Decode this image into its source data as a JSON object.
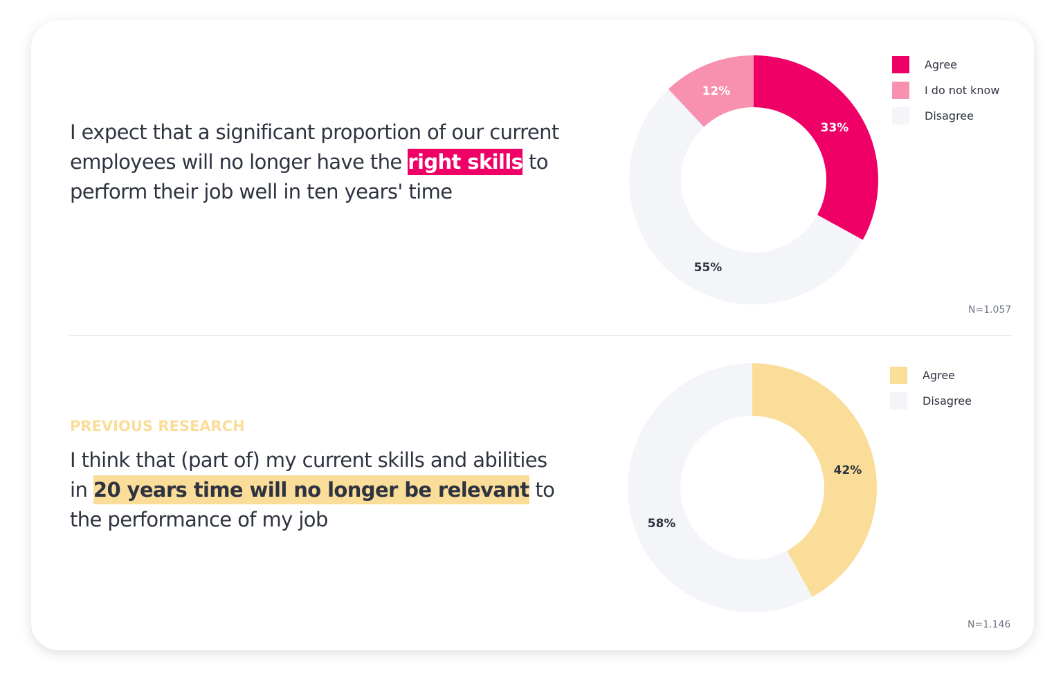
{
  "panels": [
    {
      "statement": {
        "before": "I expect that a significant proportion of our current employees will no longer have the ",
        "highlight": "right skills",
        "after": " to perform their job well in ten years' time"
      },
      "highlight_color": "#ee0066",
      "n_label": "N=1.057",
      "legend": [
        {
          "label": "Agree",
          "color": "#ee0066"
        },
        {
          "label": "I do not know",
          "color": "#f891b0"
        },
        {
          "label": "Disagree",
          "color": "#f3f5f9"
        }
      ]
    },
    {
      "kicker": "PREVIOUS RESEARCH",
      "statement": {
        "before": "I think that (part of) my current skills and abilities in ",
        "highlight": "20 years time will no longer be relevant",
        "after": " to the performance of my job"
      },
      "highlight_color": "#fbdd9a",
      "n_label": "N=1.146",
      "legend": [
        {
          "label": "Agree",
          "color": "#fbdd9a"
        },
        {
          "label": "Disagree",
          "color": "#f3f5f9"
        }
      ]
    }
  ],
  "chart_data": [
    {
      "type": "pie",
      "variant": "donut",
      "title": "I expect that a significant proportion of our current employees will no longer have the right skills to perform their job well in ten years' time",
      "categories": [
        "Agree",
        "Disagree",
        "I do not know"
      ],
      "values": [
        33,
        55,
        12
      ],
      "labels": [
        "33%",
        "55%",
        "12%"
      ],
      "colors": [
        "#ee0066",
        "#f3f5f9",
        "#f891b0"
      ],
      "start_angle": "12 o'clock, clockwise",
      "legend_position": "top-right",
      "legend_order": [
        "Agree",
        "I do not know",
        "Disagree"
      ],
      "n": "N=1.057"
    },
    {
      "type": "pie",
      "variant": "donut",
      "title": "I think that (part of) my current skills and abilities in 20 years time will no longer be relevant to the performance of my job",
      "categories": [
        "Agree",
        "Disagree"
      ],
      "values": [
        42,
        58
      ],
      "labels": [
        "42%",
        "58%"
      ],
      "colors": [
        "#fbdd9a",
        "#f3f5f9"
      ],
      "start_angle": "12 o'clock, clockwise",
      "legend_position": "top-right",
      "legend_order": [
        "Agree",
        "Disagree"
      ],
      "n": "N=1.146"
    }
  ]
}
